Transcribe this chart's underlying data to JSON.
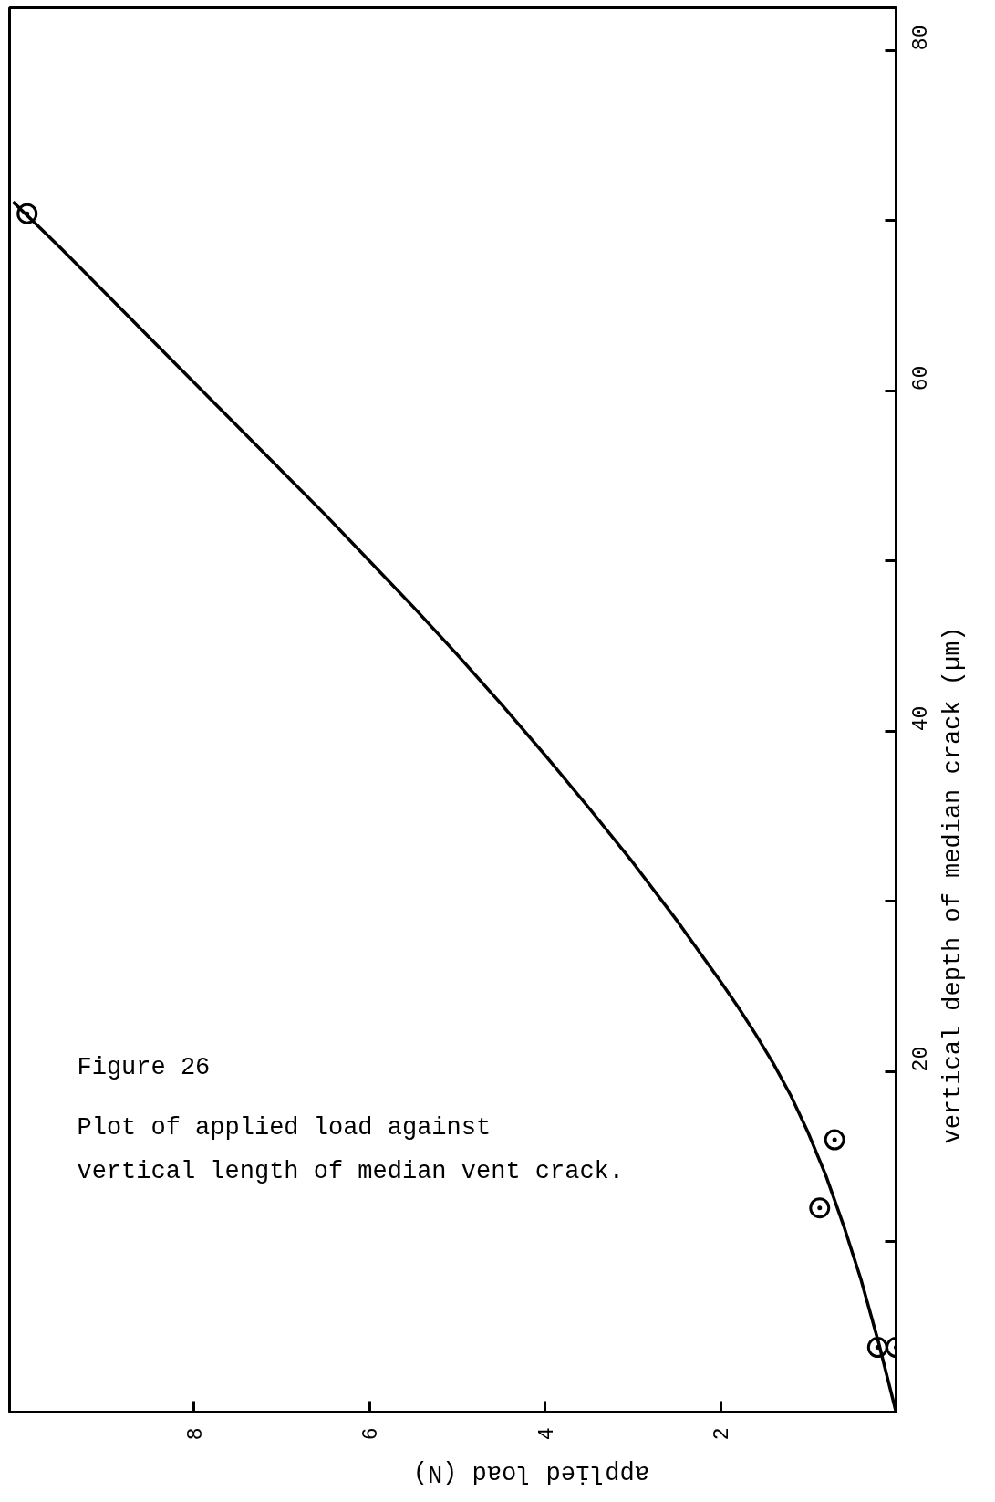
{
  "chart_data": {
    "type": "scatter",
    "title": "Figure 26",
    "subtitle": "Plot of applied load against\nvertical length of median vent crack.",
    "xlabel": "applied load (N)",
    "ylabel": "vertical depth of median crack (µm)",
    "xlim": [
      10.1,
      0
    ],
    "ylim": [
      0,
      82.5
    ],
    "xticks": [
      2,
      4,
      6,
      8
    ],
    "yticks": [
      {
        "value": 10,
        "label": null
      },
      20,
      {
        "value": 30,
        "label": null
      },
      40,
      {
        "value": 50,
        "label": null
      },
      60,
      {
        "value": 70,
        "label": null
      },
      80
    ],
    "series": [
      {
        "type": "line",
        "color": "#000000",
        "line_style": "solid",
        "x": [
          0,
          0.2,
          0.4,
          0.6,
          0.8,
          1.0,
          1.2,
          1.4,
          1.6,
          1.8,
          2.0,
          2.5,
          3.0,
          3.5,
          4.0,
          4.5,
          5.0,
          5.5,
          6.0,
          6.5,
          7.0,
          7.5,
          8.0,
          8.5,
          9.0,
          9.5,
          10.06
        ],
        "values": [
          0,
          4.1,
          7.8,
          11.0,
          13.9,
          16.4,
          18.6,
          20.5,
          22.2,
          23.8,
          25.3,
          28.9,
          32.3,
          35.5,
          38.6,
          41.6,
          44.5,
          47.3,
          50.0,
          52.7,
          55.3,
          57.9,
          60.5,
          63.1,
          65.7,
          68.3,
          71.1
        ]
      },
      {
        "color": "#000000",
        "marker": "circle",
        "x": [
          0.0,
          0.21,
          0.87,
          0.7,
          9.9
        ],
        "values": [
          3.8,
          3.8,
          12.0,
          16.0,
          70.4
        ]
      }
    ]
  }
}
